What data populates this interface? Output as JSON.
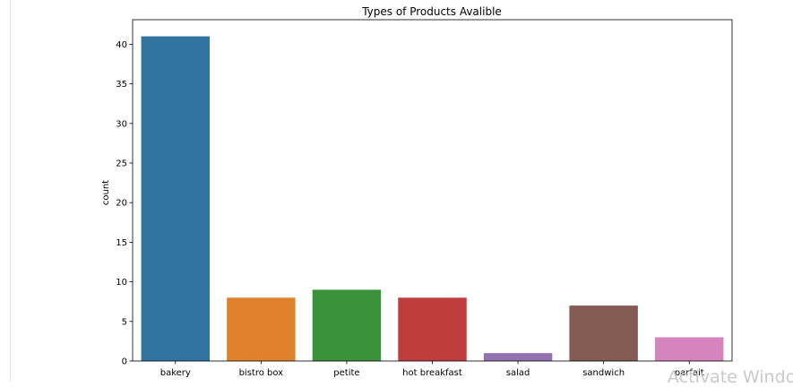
{
  "chart_data": {
    "type": "bar",
    "title": "Types of Products Avalible",
    "xlabel": "",
    "ylabel": "count",
    "categories": [
      "bakery",
      "bistro box",
      "petite",
      "hot breakfast",
      "salad",
      "sandwich",
      "parfait"
    ],
    "values": [
      41,
      8,
      9,
      8,
      1,
      7,
      3
    ],
    "colors": [
      "#3274a1",
      "#e1812c",
      "#3a923a",
      "#c03d3e",
      "#9372b2",
      "#845b53",
      "#d684bd"
    ],
    "ylim": [
      0,
      43.1
    ],
    "yticks": [
      0,
      5,
      10,
      15,
      20,
      25,
      30,
      35,
      40
    ],
    "grid": false
  },
  "watermark": "Activate Windows"
}
